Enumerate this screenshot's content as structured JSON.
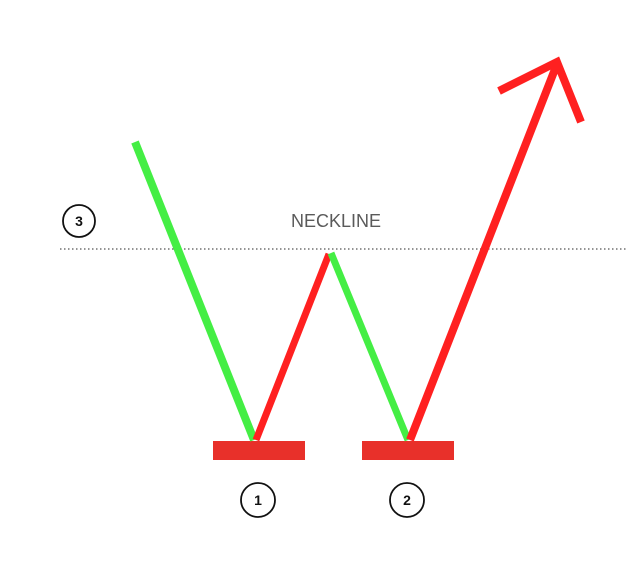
{
  "neckline": {
    "label": "NECKLINE"
  },
  "markers": [
    {
      "id": "1"
    },
    {
      "id": "2"
    },
    {
      "id": "3"
    }
  ],
  "colors": {
    "bullish": "#ff2020",
    "bearish": "#44ee44",
    "support": "#e8302a",
    "neckline": "#555555",
    "marker": "#111111"
  }
}
